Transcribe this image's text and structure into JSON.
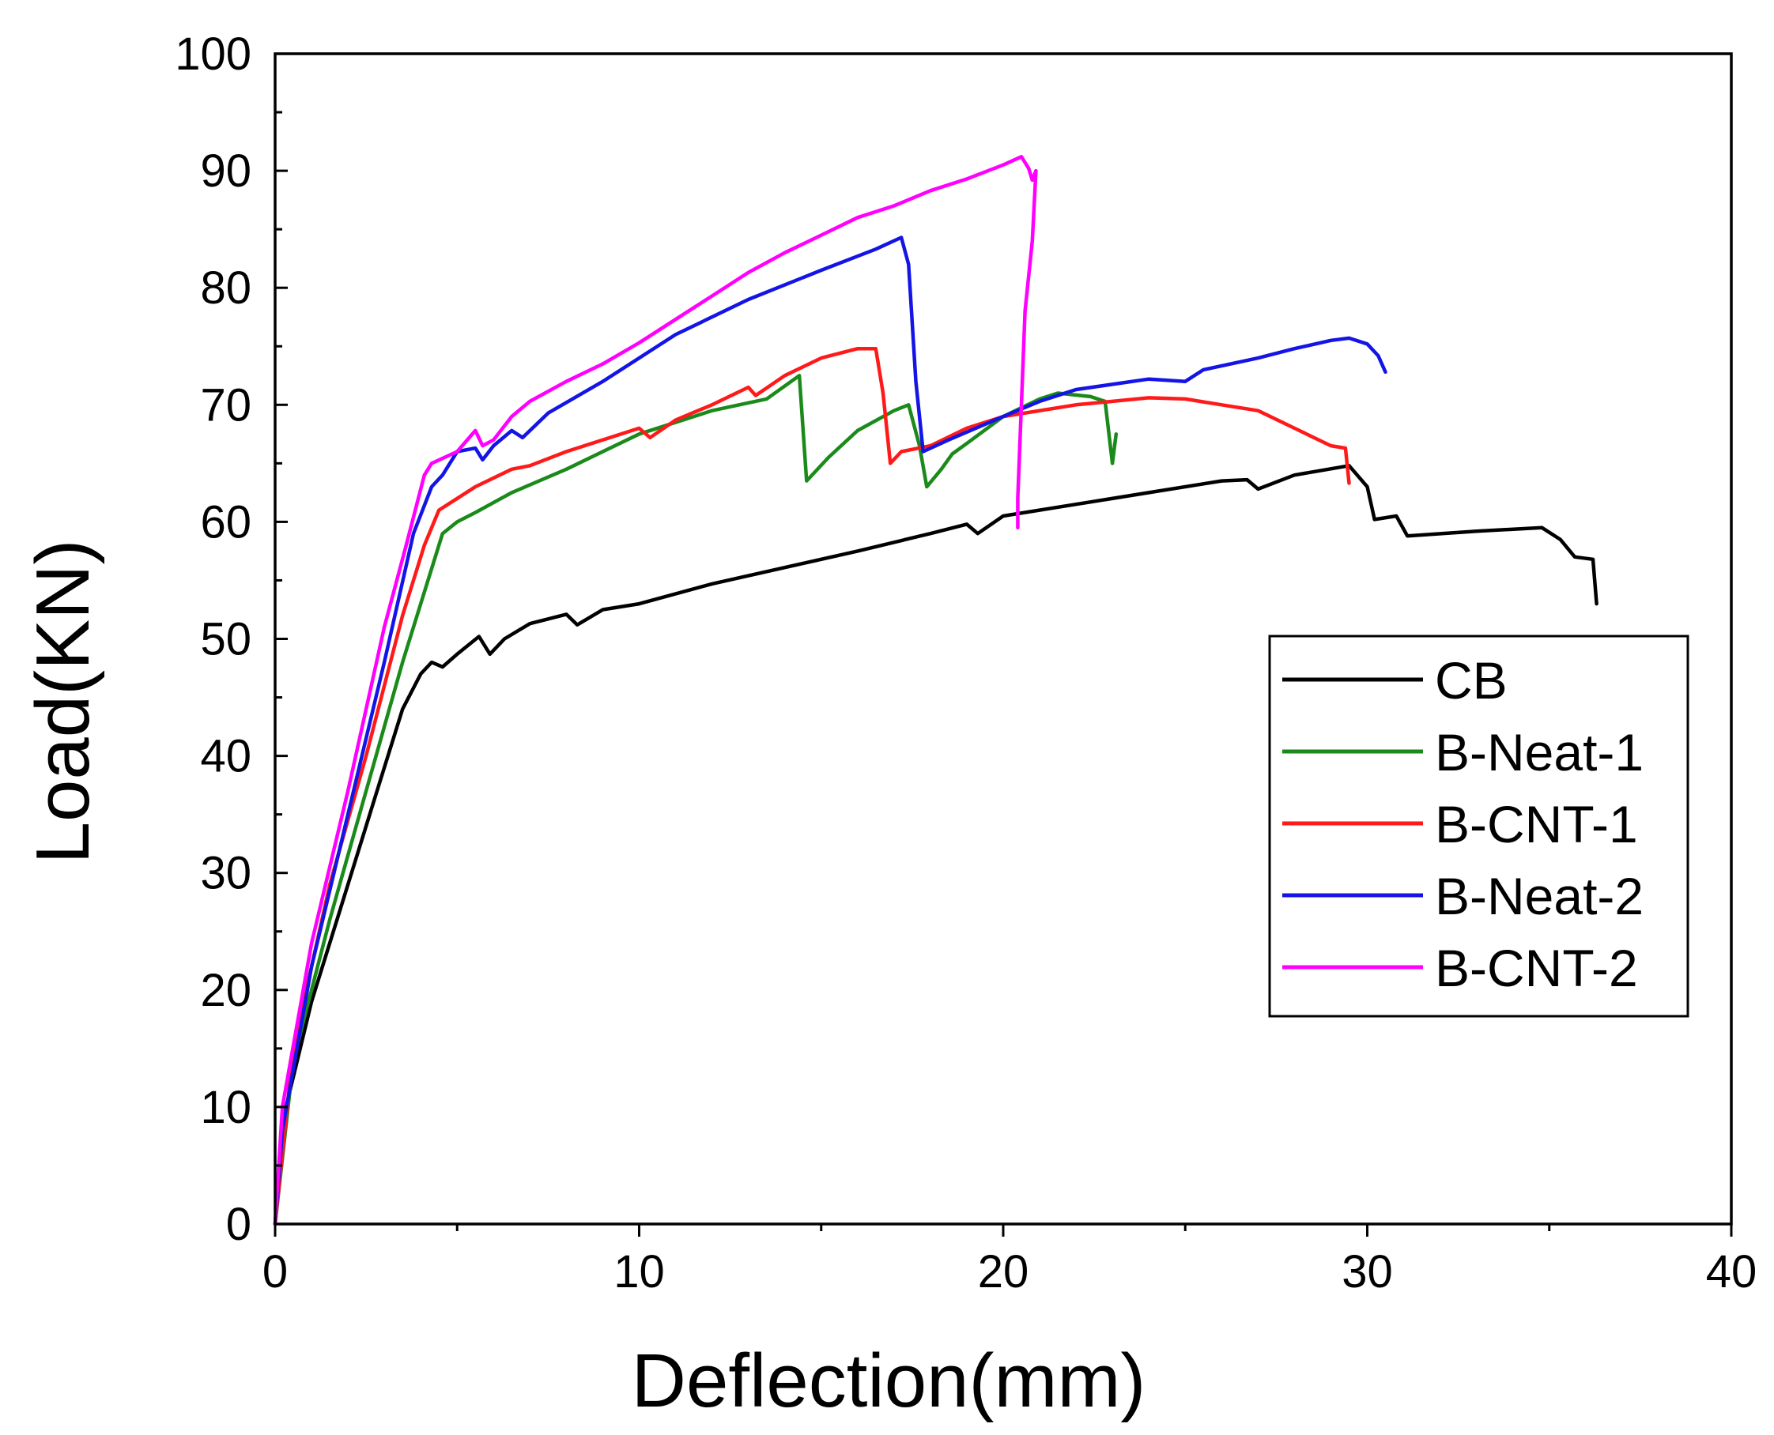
{
  "chart_data": {
    "type": "line",
    "title": "",
    "xlabel": "Deflection(mm)",
    "ylabel": "Load(KN)",
    "xlim": [
      0,
      40
    ],
    "ylim": [
      0,
      100
    ],
    "x_ticks": [
      "0",
      "10",
      "20",
      "30",
      "40"
    ],
    "y_ticks": [
      "0",
      "10",
      "20",
      "30",
      "40",
      "50",
      "60",
      "70",
      "80",
      "90",
      "100"
    ],
    "legend_position": "right",
    "series": [
      {
        "name": "CB",
        "color": "#000000",
        "points": [
          [
            0,
            0
          ],
          [
            0.3,
            10
          ],
          [
            1,
            19
          ],
          [
            2,
            29
          ],
          [
            2.8,
            37
          ],
          [
            3.5,
            44
          ],
          [
            4,
            47
          ],
          [
            4.3,
            48
          ],
          [
            4.6,
            47.6
          ],
          [
            5,
            48.7
          ],
          [
            5.6,
            50.2
          ],
          [
            5.9,
            48.7
          ],
          [
            6.3,
            50
          ],
          [
            7,
            51.3
          ],
          [
            8,
            52.1
          ],
          [
            8.3,
            51.2
          ],
          [
            9,
            52.5
          ],
          [
            10,
            53
          ],
          [
            12,
            54.7
          ],
          [
            14,
            56.1
          ],
          [
            16,
            57.5
          ],
          [
            18,
            59
          ],
          [
            19,
            59.8
          ],
          [
            19.3,
            59
          ],
          [
            20,
            60.5
          ],
          [
            22,
            61.5
          ],
          [
            24,
            62.5
          ],
          [
            26,
            63.5
          ],
          [
            26.7,
            63.6
          ],
          [
            27,
            62.8
          ],
          [
            28,
            64
          ],
          [
            29.5,
            64.8
          ],
          [
            30,
            63
          ],
          [
            30.2,
            60.2
          ],
          [
            30.8,
            60.5
          ],
          [
            31.1,
            58.8
          ],
          [
            33,
            59.2
          ],
          [
            34.8,
            59.5
          ],
          [
            35.3,
            58.5
          ],
          [
            35.7,
            57
          ],
          [
            36.2,
            56.8
          ],
          [
            36.3,
            53
          ]
        ]
      },
      {
        "name": "B-Neat-1",
        "color": "#1a8a1a",
        "points": [
          [
            0,
            0
          ],
          [
            0.5,
            14
          ],
          [
            1.5,
            26
          ],
          [
            2.5,
            37
          ],
          [
            3.5,
            48
          ],
          [
            4.2,
            55
          ],
          [
            4.6,
            59
          ],
          [
            5,
            60
          ],
          [
            5.5,
            60.8
          ],
          [
            6.5,
            62.5
          ],
          [
            8,
            64.5
          ],
          [
            10,
            67.5
          ],
          [
            12,
            69.5
          ],
          [
            13.5,
            70.5
          ],
          [
            14.4,
            72.5
          ],
          [
            14.6,
            63.5
          ],
          [
            15.2,
            65.5
          ],
          [
            16,
            67.8
          ],
          [
            17,
            69.5
          ],
          [
            17.4,
            70
          ],
          [
            17.7,
            66.5
          ],
          [
            17.9,
            63
          ],
          [
            18.3,
            64.5
          ],
          [
            18.6,
            65.8
          ],
          [
            19,
            66.7
          ],
          [
            20,
            69
          ],
          [
            21,
            70.5
          ],
          [
            21.5,
            71
          ],
          [
            22.4,
            70.7
          ],
          [
            22.8,
            70.3
          ],
          [
            23,
            65
          ],
          [
            23.1,
            67.5
          ]
        ]
      },
      {
        "name": "B-CNT-1",
        "color": "#ff1a1a",
        "points": [
          [
            0,
            0
          ],
          [
            0.5,
            15
          ],
          [
            1.5,
            29
          ],
          [
            2.5,
            40
          ],
          [
            3.5,
            52
          ],
          [
            4.1,
            58
          ],
          [
            4.5,
            61
          ],
          [
            5,
            62
          ],
          [
            5.5,
            63
          ],
          [
            6.5,
            64.5
          ],
          [
            7,
            64.8
          ],
          [
            8,
            66
          ],
          [
            10,
            68
          ],
          [
            10.3,
            67.2
          ],
          [
            11,
            68.7
          ],
          [
            12,
            70
          ],
          [
            13,
            71.5
          ],
          [
            13.2,
            70.8
          ],
          [
            14,
            72.5
          ],
          [
            15,
            74
          ],
          [
            16,
            74.8
          ],
          [
            16.5,
            74.8
          ],
          [
            16.7,
            71
          ],
          [
            16.9,
            65
          ],
          [
            17.2,
            66
          ],
          [
            18,
            66.5
          ],
          [
            19,
            68
          ],
          [
            20,
            69
          ],
          [
            22,
            70
          ],
          [
            24,
            70.6
          ],
          [
            25,
            70.5
          ],
          [
            26,
            70
          ],
          [
            27,
            69.5
          ],
          [
            28,
            68
          ],
          [
            29,
            66.5
          ],
          [
            29.4,
            66.3
          ],
          [
            29.5,
            63.3
          ]
        ]
      },
      {
        "name": "B-Neat-2",
        "color": "#1414e6",
        "points": [
          [
            0,
            0
          ],
          [
            0.2,
            8
          ],
          [
            1,
            22
          ],
          [
            2,
            35
          ],
          [
            3,
            48
          ],
          [
            3.8,
            59
          ],
          [
            4.3,
            63
          ],
          [
            4.6,
            64
          ],
          [
            5,
            66
          ],
          [
            5.5,
            66.3
          ],
          [
            5.7,
            65.3
          ],
          [
            6,
            66.5
          ],
          [
            6.5,
            67.8
          ],
          [
            6.8,
            67.2
          ],
          [
            7.5,
            69.3
          ],
          [
            9,
            72
          ],
          [
            11,
            76
          ],
          [
            13,
            79
          ],
          [
            15,
            81.5
          ],
          [
            16.5,
            83.3
          ],
          [
            17.2,
            84.3
          ],
          [
            17.4,
            82
          ],
          [
            17.6,
            72
          ],
          [
            17.8,
            66
          ],
          [
            18.5,
            67
          ],
          [
            20,
            69
          ],
          [
            21,
            70.3
          ],
          [
            22,
            71.3
          ],
          [
            24,
            72.2
          ],
          [
            25,
            72
          ],
          [
            25.5,
            73
          ],
          [
            27,
            74
          ],
          [
            28,
            74.8
          ],
          [
            29,
            75.5
          ],
          [
            29.5,
            75.7
          ],
          [
            30,
            75.2
          ],
          [
            30.3,
            74.2
          ],
          [
            30.5,
            72.8
          ]
        ]
      },
      {
        "name": "B-CNT-2",
        "color": "#ff00ff",
        "points": [
          [
            0,
            0
          ],
          [
            0.2,
            10
          ],
          [
            1,
            24
          ],
          [
            2,
            37
          ],
          [
            3,
            51
          ],
          [
            3.6,
            58
          ],
          [
            4.1,
            64
          ],
          [
            4.3,
            65
          ],
          [
            5,
            66
          ],
          [
            5.5,
            67.8
          ],
          [
            5.7,
            66.5
          ],
          [
            6,
            67
          ],
          [
            6.5,
            69
          ],
          [
            7,
            70.3
          ],
          [
            8,
            72
          ],
          [
            9,
            73.5
          ],
          [
            10,
            75.3
          ],
          [
            11,
            77.3
          ],
          [
            12,
            79.3
          ],
          [
            13,
            81.3
          ],
          [
            14,
            83
          ],
          [
            15,
            84.5
          ],
          [
            16,
            86
          ],
          [
            17,
            87
          ],
          [
            18,
            88.3
          ],
          [
            19,
            89.3
          ],
          [
            20,
            90.5
          ],
          [
            20.5,
            91.2
          ],
          [
            20.7,
            90.2
          ],
          [
            20.8,
            89.2
          ],
          [
            20.9,
            90
          ],
          [
            20.8,
            84
          ],
          [
            20.6,
            78
          ],
          [
            20.5,
            70
          ],
          [
            20.4,
            62
          ],
          [
            20.4,
            59.5
          ]
        ]
      }
    ]
  }
}
